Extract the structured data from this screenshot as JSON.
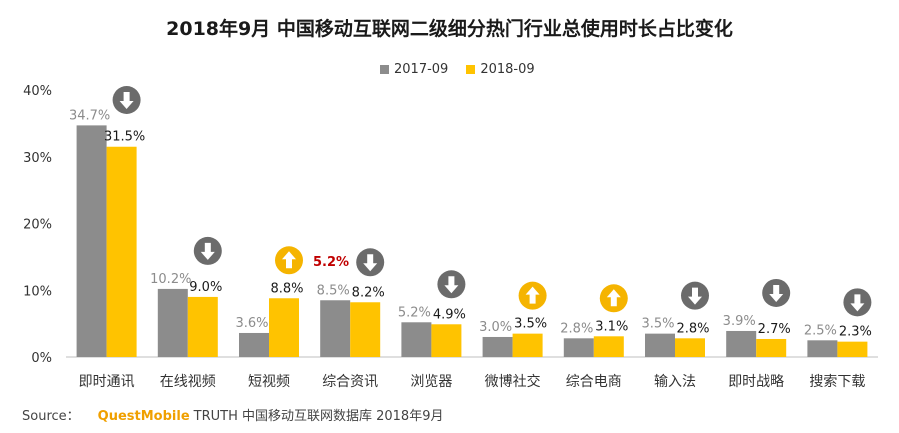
{
  "title": "2018年9月 中国移动互联网二级细分热门行业总使用时长占比变化",
  "legend": [
    {
      "name": "2017-09",
      "color": "#8c8c8c"
    },
    {
      "name": "2018-09",
      "color": "#ffc300"
    }
  ],
  "source": {
    "prefix": "Source：",
    "brand": "QuestMobile",
    "rest": "TRUTH 中国移动互联网数据库 2018年9月"
  },
  "colors": {
    "down": "#6b6b6b",
    "up": "#f5b400",
    "highlight": "#c00000"
  },
  "chart_data": {
    "type": "bar",
    "title": "2018年9月 中国移动互联网二级细分热门行业总使用时长占比变化",
    "categories": [
      "即时通讯",
      "在线视频",
      "短视频",
      "综合资讯",
      "浏览器",
      "微博社交",
      "综合电商",
      "输入法",
      "即时战略",
      "搜索下载"
    ],
    "series": [
      {
        "name": "2017-09",
        "values": [
          34.7,
          10.2,
          3.6,
          8.5,
          5.2,
          3.0,
          2.8,
          3.5,
          3.9,
          2.5
        ]
      },
      {
        "name": "2018-09",
        "values": [
          31.5,
          9.0,
          8.8,
          8.2,
          4.9,
          3.5,
          3.1,
          2.8,
          2.7,
          2.3
        ]
      }
    ],
    "trend": [
      "down",
      "down",
      "up",
      "down",
      "down",
      "up",
      "up",
      "down",
      "down",
      "down"
    ],
    "annotations": [
      {
        "category": "短视频",
        "text": "5.2%"
      }
    ],
    "yticks": [
      "0%",
      "10%",
      "20%",
      "30%",
      "40%"
    ],
    "ylim": [
      0,
      40
    ],
    "grid": false,
    "legend_position": "top-center"
  }
}
